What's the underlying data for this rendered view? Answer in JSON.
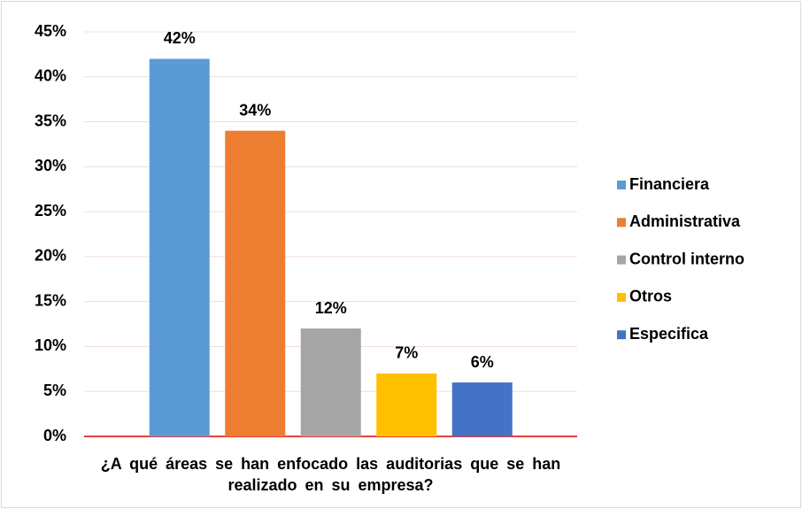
{
  "chart_data": {
    "type": "bar",
    "x_label": "¿A qué áreas se han enfocado las auditorias que se han realizado en su empresa?",
    "categories": [
      "Financiera",
      "Administrativa",
      "Control  interno",
      "Otros",
      "Especifica"
    ],
    "values": [
      42,
      34,
      12,
      7,
      6
    ],
    "value_labels": [
      "42%",
      "34%",
      "12%",
      "7%",
      "6%"
    ],
    "colors": [
      "#5b9bd5",
      "#ed7d31",
      "#a5a5a5",
      "#ffc000",
      "#4472c4"
    ],
    "ylim": [
      0,
      45
    ],
    "yticks": [
      {
        "value": 0,
        "label": "0%"
      },
      {
        "value": 5,
        "label": "5%"
      },
      {
        "value": 10,
        "label": "10%"
      },
      {
        "value": 15,
        "label": "15%"
      },
      {
        "value": 20,
        "label": "20%"
      },
      {
        "value": 25,
        "label": "25%"
      },
      {
        "value": 30,
        "label": "30%"
      },
      {
        "value": 35,
        "label": "35%"
      },
      {
        "value": 40,
        "label": "40%"
      },
      {
        "value": 45,
        "label": "45%"
      }
    ],
    "grid": true,
    "legend": "right"
  }
}
